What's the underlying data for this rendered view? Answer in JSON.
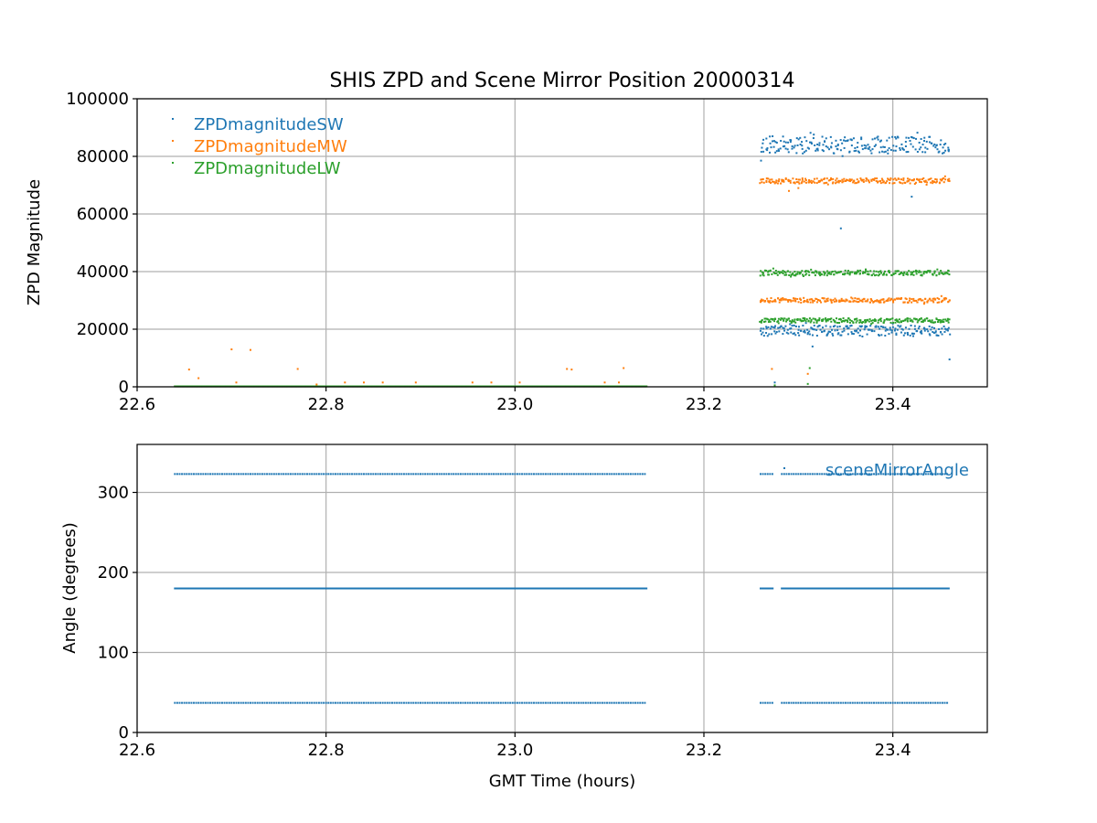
{
  "chart_data": [
    {
      "type": "scatter",
      "title": "SHIS ZPD and Scene Mirror Position 20000314",
      "xlabel": "",
      "ylabel": "ZPD Magnitude",
      "xlim": [
        22.6,
        23.5
      ],
      "ylim": [
        0,
        100000
      ],
      "xticks": [
        22.6,
        22.8,
        23.0,
        23.2,
        23.4
      ],
      "xtick_labels": [
        "22.6",
        "22.8",
        "23.0",
        "23.2",
        "23.4"
      ],
      "yticks": [
        0,
        20000,
        40000,
        60000,
        80000,
        100000
      ],
      "ytick_labels": [
        "0",
        "20000",
        "40000",
        "60000",
        "80000",
        "100000"
      ],
      "grid": true,
      "legend": "top-left",
      "series": [
        {
          "name": "ZPDmagnitudeSW",
          "color": "#1f77b4",
          "segments": [
            {
              "x_start": 22.64,
              "x_end": 23.14,
              "y": 0
            },
            {
              "x_start": 23.26,
              "x_end": 23.46,
              "y": 84000,
              "spread": 3000
            },
            {
              "x_start": 23.26,
              "x_end": 23.46,
              "y": 19500,
              "spread": 1800
            }
          ],
          "outliers": [
            {
              "x": 23.345,
              "y": 55000
            },
            {
              "x": 23.46,
              "y": 9500
            },
            {
              "x": 23.275,
              "y": 1500
            },
            {
              "x": 23.315,
              "y": 14000
            },
            {
              "x": 23.42,
              "y": 66000
            }
          ]
        },
        {
          "name": "ZPDmagnitudeMW",
          "color": "#ff7f0e",
          "segments": [
            {
              "x_start": 22.64,
              "x_end": 23.14,
              "y": 0
            },
            {
              "x_start": 23.26,
              "x_end": 23.46,
              "y": 71500,
              "spread": 900
            },
            {
              "x_start": 23.26,
              "x_end": 23.46,
              "y": 30000,
              "spread": 800
            }
          ],
          "outliers": [
            {
              "x": 22.655,
              "y": 6000
            },
            {
              "x": 22.665,
              "y": 3000
            },
            {
              "x": 22.7,
              "y": 13000
            },
            {
              "x": 22.705,
              "y": 1500
            },
            {
              "x": 22.72,
              "y": 12800
            },
            {
              "x": 22.77,
              "y": 6200
            },
            {
              "x": 22.79,
              "y": 800
            },
            {
              "x": 22.82,
              "y": 1500
            },
            {
              "x": 22.84,
              "y": 1500
            },
            {
              "x": 22.86,
              "y": 1500
            },
            {
              "x": 22.895,
              "y": 1500
            },
            {
              "x": 22.955,
              "y": 1500
            },
            {
              "x": 22.975,
              "y": 1500
            },
            {
              "x": 23.005,
              "y": 1500
            },
            {
              "x": 23.055,
              "y": 6200
            },
            {
              "x": 23.06,
              "y": 6000
            },
            {
              "x": 23.095,
              "y": 1500
            },
            {
              "x": 23.115,
              "y": 6500
            },
            {
              "x": 23.11,
              "y": 1500
            },
            {
              "x": 23.272,
              "y": 6200
            },
            {
              "x": 23.31,
              "y": 4500
            },
            {
              "x": 23.29,
              "y": 68000
            },
            {
              "x": 23.3,
              "y": 69000
            }
          ]
        },
        {
          "name": "ZPDmagnitudeLW",
          "color": "#2ca02c",
          "segments": [
            {
              "x_start": 22.64,
              "x_end": 23.14,
              "y": 0
            },
            {
              "x_start": 23.26,
              "x_end": 23.46,
              "y": 39500,
              "spread": 900
            },
            {
              "x_start": 23.26,
              "x_end": 23.46,
              "y": 23000,
              "spread": 800
            }
          ],
          "outliers": [
            {
              "x": 23.275,
              "y": 500
            },
            {
              "x": 23.31,
              "y": 1000
            },
            {
              "x": 23.312,
              "y": 6500
            }
          ]
        }
      ]
    },
    {
      "type": "scatter",
      "title": "",
      "xlabel": "GMT Time (hours)",
      "ylabel": "Angle (degrees)",
      "xlim": [
        22.6,
        23.5
      ],
      "ylim": [
        0,
        360
      ],
      "xticks": [
        22.6,
        22.8,
        23.0,
        23.2,
        23.4
      ],
      "xtick_labels": [
        "22.6",
        "22.8",
        "23.0",
        "23.2",
        "23.4"
      ],
      "yticks": [
        0,
        100,
        200,
        300
      ],
      "ytick_labels": [
        "0",
        "100",
        "200",
        "300"
      ],
      "grid": true,
      "legend": "top-right",
      "series": [
        {
          "name": "sceneMirrorAngle",
          "color": "#1f77b4",
          "levels": [
            323,
            180,
            37
          ],
          "x_ranges": [
            [
              22.64,
              23.14
            ],
            [
              23.26,
              23.46
            ]
          ]
        }
      ]
    }
  ]
}
